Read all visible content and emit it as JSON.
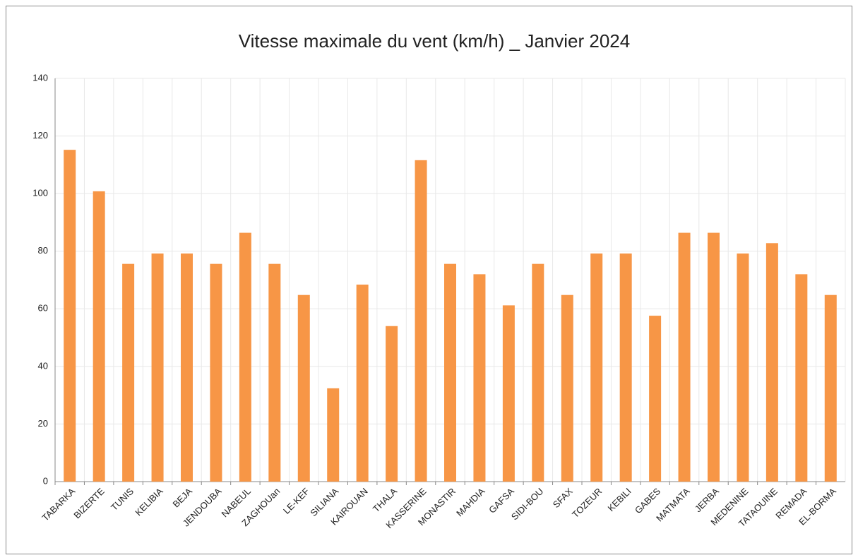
{
  "chart_data": {
    "type": "bar",
    "title": "Vitesse maximale du vent (km/h) _ Janvier 2024",
    "categories": [
      "TABARKA",
      "BIZERTE",
      "TUNIS",
      "KELIBIA",
      "BEJA",
      "JENDOUBA",
      "NABEUL",
      "ZAGHOUan",
      "LE-KEF",
      "SILIANA",
      "KAIROUAN",
      "THALA",
      "KASSERINE",
      "MONASTIR",
      "MAHDIA",
      "GAFSA",
      "SIDI-BOU",
      "SFAX",
      "TOZEUR",
      "KEBILI",
      "GABES",
      "MATMATA",
      "JERBA",
      "MEDENINE",
      "TATAOUINE",
      "REMADA",
      "EL-BORMA"
    ],
    "values": [
      115.2,
      100.8,
      75.6,
      79.2,
      79.2,
      75.6,
      86.4,
      75.6,
      64.8,
      32.4,
      68.4,
      54,
      111.6,
      75.6,
      72,
      61.2,
      75.6,
      64.8,
      79.2,
      79.2,
      57.6,
      86.4,
      86.4,
      79.2,
      82.8,
      72,
      64.8
    ],
    "color": "#f79646",
    "ylim": [
      0,
      140
    ],
    "yticks": [
      0,
      20,
      40,
      60,
      80,
      100,
      120,
      140
    ],
    "grid": true
  }
}
